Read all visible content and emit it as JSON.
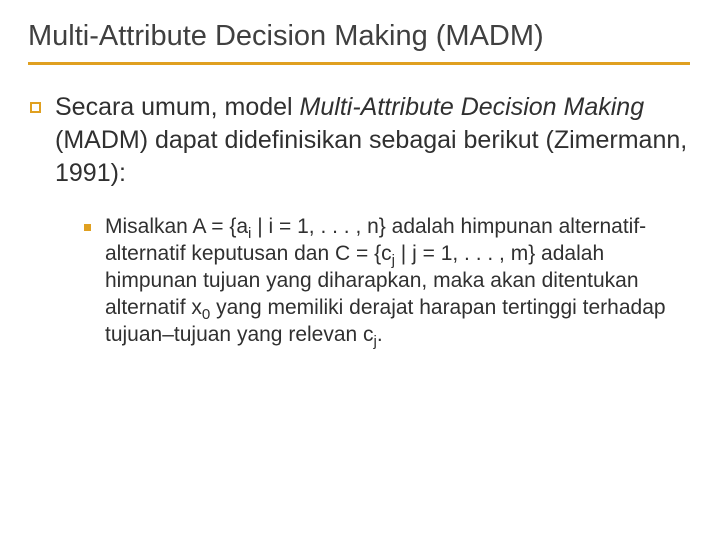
{
  "title": "Multi-Attribute Decision Making (MADM)",
  "underline_color": "#e0a020",
  "level1": {
    "pre": "Secara umum, model ",
    "italic": "Multi-Attribute Decision Making",
    "post": " (MADM) dapat didefinisikan sebagai berikut (Zimermann, 1991):"
  },
  "level2": {
    "seg1": "Misalkan A = {a",
    "sub1": "i",
    "seg2": " | i = 1, . . . , n} adalah himpunan alternatif-alternatif keputusan dan C = {c",
    "sub2": "j",
    "seg3": " | j = 1, . . . , m} adalah himpunan tujuan yang diharapkan, maka akan ditentukan alternatif x",
    "sub3": "0",
    "seg4": " yang memiliki derajat harapan tertinggi terhadap tujuan–tujuan yang relevan c",
    "sub4": "j",
    "seg5": "."
  },
  "colors": {
    "text": "#303030",
    "title": "#404040",
    "accent": "#e0a020",
    "background": "#ffffff"
  },
  "fonts": {
    "title_size": 29,
    "body_size": 25,
    "sub_body_size": 21
  }
}
